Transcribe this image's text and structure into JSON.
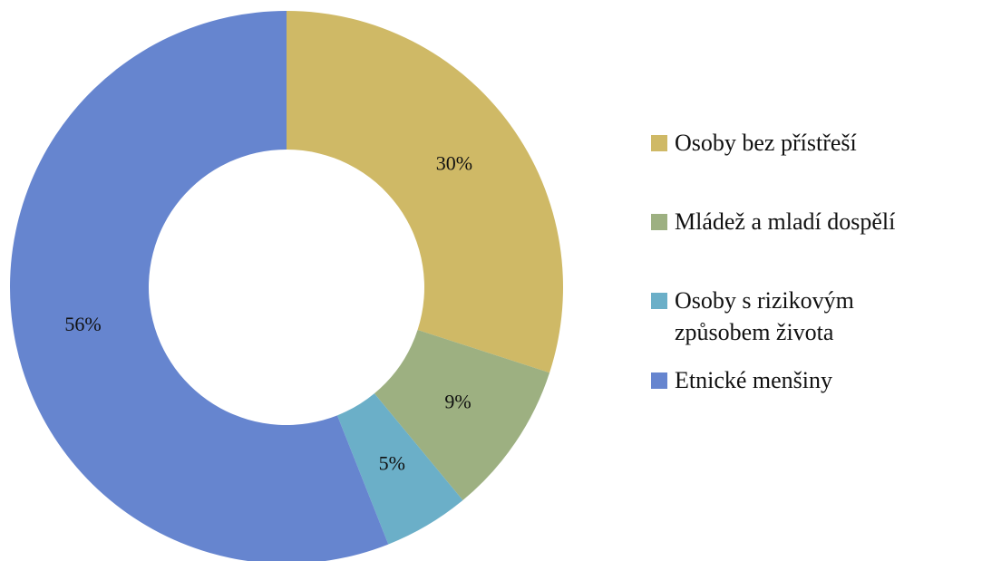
{
  "chart_data": {
    "type": "donut",
    "categories": [
      "Osoby bez přístřeší",
      "Mládež a mladí dospělí",
      "Osoby s rizikovým způsobem života",
      "Etnické menšiny"
    ],
    "values": [
      30,
      9,
      5,
      56
    ],
    "value_labels": [
      "30%",
      "9%",
      "5%",
      "56%"
    ],
    "colors": [
      "#cfb966",
      "#9db081",
      "#6bafc8",
      "#6685cf"
    ],
    "legend": "right"
  }
}
